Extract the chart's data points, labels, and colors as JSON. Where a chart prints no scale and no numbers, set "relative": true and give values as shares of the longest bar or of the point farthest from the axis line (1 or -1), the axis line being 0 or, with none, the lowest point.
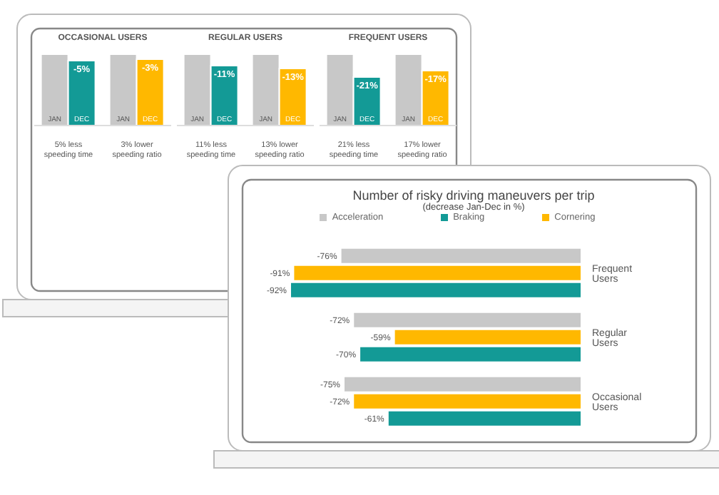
{
  "chart_data": [
    {
      "type": "bar",
      "title": "OCCASIONAL USERS",
      "categories": [
        "5% less speeding time",
        "3% lower speeding ratio"
      ],
      "relative": true,
      "series": [
        {
          "name": "JAN",
          "color": "#c8c8c8",
          "values": [
            1,
            1
          ]
        },
        {
          "name": "DEC",
          "colors": [
            "#139a96",
            "#ffb800"
          ],
          "values": [
            0.91,
            0.93
          ]
        }
      ],
      "annotations": [
        {
          "text": "-5%",
          "x": "5% less speeding time",
          "y": 0.91
        },
        {
          "text": "-3%",
          "x": "3% lower speeding ratio",
          "y": 0.93
        }
      ]
    },
    {
      "type": "bar",
      "title": "REGULAR USERS",
      "categories": [
        "11% less speeding time",
        "13% lower speeding ratio"
      ],
      "relative": true,
      "series": [
        {
          "name": "JAN",
          "color": "#c8c8c8",
          "values": [
            1,
            1
          ]
        },
        {
          "name": "DEC",
          "colors": [
            "#139a96",
            "#ffb800"
          ],
          "values": [
            0.84,
            0.8
          ]
        }
      ],
      "annotations": [
        {
          "text": "-11%",
          "x": "11% less speeding time",
          "y": 0.84
        },
        {
          "text": "-13%",
          "x": "13% lower speeding ratio",
          "y": 0.8
        }
      ]
    },
    {
      "type": "bar",
      "title": "FREQUENT USERS",
      "categories": [
        "21% less speeding time",
        "17% lower speeding ratio"
      ],
      "relative": true,
      "series": [
        {
          "name": "JAN",
          "color": "#c8c8c8",
          "values": [
            1,
            1
          ]
        },
        {
          "name": "DEC",
          "colors": [
            "#139a96",
            "#ffb800"
          ],
          "values": [
            0.68,
            0.77
          ]
        }
      ],
      "annotations": [
        {
          "text": "-21%",
          "x": "21% less speeding time",
          "y": 0.68
        },
        {
          "text": "-17%",
          "x": "17% lower speeding ratio",
          "y": 0.77
        }
      ]
    },
    {
      "type": "bar",
      "orientation": "horizontal",
      "title": "Number of risky driving maneuvers per trip",
      "subtitle": "(decrease Jan-Dec in %)",
      "categories": [
        "Frequent Users",
        "Regular Users",
        "Occasional Users"
      ],
      "legend": "top",
      "series": [
        {
          "name": "Acceleration",
          "color": "#c8c8c8",
          "values": [
            -76,
            -72,
            -75
          ],
          "value_labels": [
            "-76%",
            "-72%",
            "-75%"
          ]
        },
        {
          "name": "Cornering",
          "color": "#ffb800",
          "values": [
            -91,
            -59,
            -72
          ],
          "value_labels": [
            "-91%",
            "-59%",
            "-72%"
          ]
        },
        {
          "name": "Braking",
          "color": "#139a96",
          "values": [
            -92,
            -70,
            -61
          ],
          "value_labels": [
            "-92%",
            "-70%",
            "-61%"
          ]
        }
      ]
    }
  ]
}
